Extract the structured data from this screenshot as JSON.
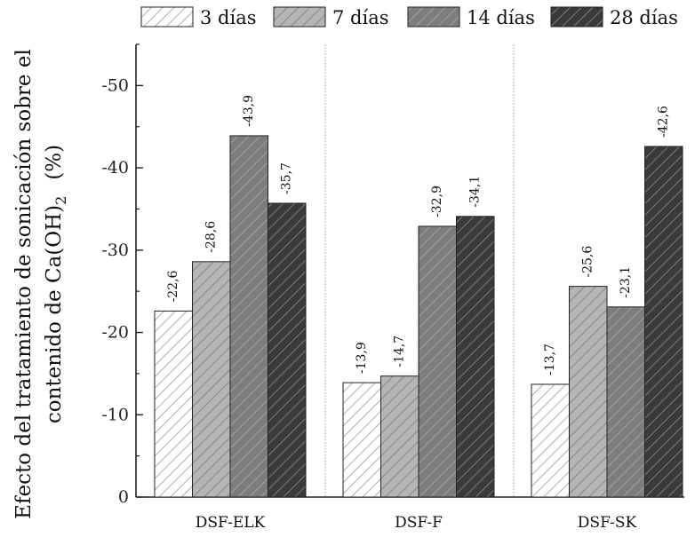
{
  "chart_data": {
    "type": "bar",
    "ylabel_line1": "Efecto del tratamiento de sonicación sobre el",
    "ylabel_line2_prefix": "contenido de Ca(OH)",
    "ylabel_line2_sub": "2",
    "ylabel_line2_unit": "(%)",
    "categories": [
      "DSF-ELK",
      "DSF-F",
      "DSF-SK"
    ],
    "series": [
      {
        "name": "3 días",
        "values": [
          -22.6,
          -13.9,
          -13.7
        ],
        "labels": [
          "-22,6",
          "-13,9",
          "-13,7"
        ],
        "fill": "#ffffff",
        "hatch": "#9a9a9a"
      },
      {
        "name": "7 días",
        "values": [
          -28.6,
          -14.7,
          -25.6
        ],
        "labels": [
          "-28,6",
          "-14,7",
          "-25,6"
        ],
        "fill": "#b5b5b5",
        "hatch": "#7a7a7a"
      },
      {
        "name": "14 días",
        "values": [
          -43.9,
          -32.9,
          -23.1
        ],
        "labels": [
          "-43,9",
          "-32,9",
          "-23,1"
        ],
        "fill": "#7d7d7d",
        "hatch": "#a8a8a8"
      },
      {
        "name": "28 días",
        "values": [
          -35.7,
          -34.1,
          -42.6
        ],
        "labels": [
          "-35,7",
          "-34,1",
          "-42,6"
        ],
        "fill": "#3a3a3a",
        "hatch": "#8a8a8a"
      }
    ],
    "y_ticks": [
      0,
      -10,
      -20,
      -30,
      -40,
      -50
    ],
    "ylim": [
      0,
      -55
    ],
    "legend_position": "top",
    "grid": false
  }
}
